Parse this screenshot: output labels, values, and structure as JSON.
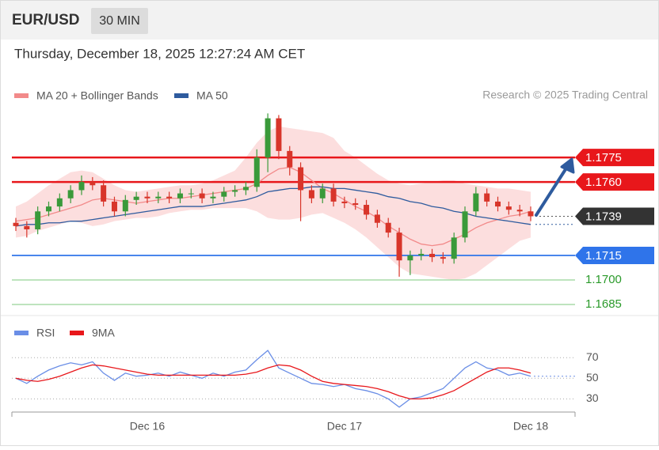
{
  "header": {
    "symbol": "EUR/USD",
    "interval": "30 MIN",
    "datetime": "Thursday, December 18, 2025 12:27:24 AM CET",
    "credit": "Research © 2025 Trading Central"
  },
  "chart_data": [
    {
      "type": "candlestick",
      "categories": [
        null,
        null,
        null,
        null,
        null,
        null,
        null,
        null,
        null,
        null,
        null,
        null,
        "Dec 16",
        null,
        null,
        null,
        null,
        null,
        null,
        null,
        null,
        null,
        null,
        null,
        null,
        null,
        null,
        null,
        null,
        null,
        "Dec 17",
        null,
        null,
        null,
        null,
        null,
        null,
        null,
        null,
        null,
        null,
        null,
        null,
        null,
        null,
        null,
        null,
        "Dec 18"
      ],
      "open": [
        1.1735,
        1.1733,
        1.1731,
        1.1742,
        1.1745,
        1.175,
        1.1755,
        1.176,
        1.1758,
        1.1748,
        1.1742,
        1.1749,
        1.1751,
        1.175,
        1.1751,
        1.175,
        1.1753,
        1.1753,
        1.175,
        1.1751,
        1.1754,
        1.1755,
        1.1757,
        1.1775,
        1.1799,
        1.1779,
        1.1769,
        1.1755,
        1.175,
        1.1756,
        1.1748,
        1.1747,
        1.1746,
        1.174,
        1.1735,
        1.1729,
        1.1712,
        1.1715,
        1.1716,
        1.1714,
        1.1713,
        1.1726,
        1.1742,
        1.1753,
        1.1748,
        1.1745,
        1.1743,
        1.1742
      ],
      "high": [
        1.1738,
        1.1736,
        1.1745,
        1.1748,
        1.1753,
        1.1758,
        1.1764,
        1.1763,
        1.1761,
        1.1751,
        1.1752,
        1.1754,
        1.1754,
        1.1754,
        1.1754,
        1.1756,
        1.1756,
        1.1756,
        1.1754,
        1.1757,
        1.1758,
        1.176,
        1.178,
        1.1802,
        1.1801,
        1.1782,
        1.1772,
        1.1758,
        1.1759,
        1.1759,
        1.1751,
        1.175,
        1.1749,
        1.1743,
        1.1738,
        1.1732,
        1.1718,
        1.1719,
        1.1719,
        1.1717,
        1.1729,
        1.1745,
        1.1757,
        1.1756,
        1.1751,
        1.1748,
        1.1746,
        1.1745
      ],
      "low": [
        1.173,
        1.1726,
        1.1728,
        1.1739,
        1.1742,
        1.1747,
        1.1752,
        1.1755,
        1.1745,
        1.1739,
        1.1739,
        1.1746,
        1.1747,
        1.1747,
        1.1747,
        1.1747,
        1.175,
        1.1747,
        1.1747,
        1.1748,
        1.1751,
        1.1752,
        1.1754,
        1.1766,
        1.1774,
        1.1764,
        1.1736,
        1.1747,
        1.1747,
        1.1745,
        1.1744,
        1.1743,
        1.1737,
        1.1732,
        1.1726,
        1.1702,
        1.1703,
        1.1712,
        1.1711,
        1.171,
        1.171,
        1.1723,
        1.1739,
        1.1745,
        1.1742,
        1.174,
        1.1739,
        1.1736
      ],
      "close": [
        1.1733,
        1.1731,
        1.1742,
        1.1745,
        1.175,
        1.1755,
        1.176,
        1.1758,
        1.1748,
        1.1742,
        1.1749,
        1.1751,
        1.175,
        1.1751,
        1.175,
        1.1753,
        1.1753,
        1.175,
        1.1751,
        1.1754,
        1.1755,
        1.1757,
        1.1775,
        1.1799,
        1.1779,
        1.1769,
        1.1755,
        1.175,
        1.1756,
        1.1748,
        1.1747,
        1.1746,
        1.174,
        1.1735,
        1.1729,
        1.1712,
        1.1715,
        1.1716,
        1.1714,
        1.1713,
        1.1726,
        1.1742,
        1.1753,
        1.1748,
        1.1745,
        1.1743,
        1.1742,
        1.1739
      ],
      "up_color": "#3a9a3a",
      "down_color": "#d8352a",
      "series": [
        {
          "name": "MA 20 + Bollinger Bands",
          "color": "#f28a8a",
          "band_color": "#fbd3d3",
          "values": [
            1.1736,
            1.1737,
            1.1738,
            1.174,
            1.1742,
            1.1744,
            1.1746,
            1.1749,
            1.175,
            1.1749,
            1.1748,
            1.1747,
            1.1748,
            1.1749,
            1.175,
            1.175,
            1.1751,
            1.1752,
            1.1753,
            1.1754,
            1.1755,
            1.1756,
            1.1759,
            1.1764,
            1.1768,
            1.1769,
            1.1766,
            1.1761,
            1.1756,
            1.1753,
            1.1749,
            1.1745,
            1.1742,
            1.1738,
            1.1733,
            1.1729,
            1.1725,
            1.1722,
            1.1721,
            1.1722,
            1.1725,
            1.1728,
            1.1732,
            1.1735,
            1.1737,
            1.1739,
            1.174,
            1.1742
          ],
          "upper": [
            1.1745,
            1.1748,
            1.1753,
            1.1758,
            1.1762,
            1.1766,
            1.1767,
            1.1766,
            1.1762,
            1.1758,
            1.1755,
            1.1754,
            1.1755,
            1.1756,
            1.1757,
            1.1758,
            1.1758,
            1.1759,
            1.1761,
            1.1764,
            1.1767,
            1.1775,
            1.1784,
            1.1791,
            1.1794,
            1.1793,
            1.1792,
            1.1791,
            1.179,
            1.1787,
            1.1779,
            1.1775,
            1.177,
            1.1765,
            1.1761,
            1.1759,
            1.1758,
            1.1759,
            1.176,
            1.1761,
            1.1761,
            1.1759,
            1.1758,
            1.1757,
            1.1756,
            1.1756,
            1.1755,
            1.1754
          ],
          "lower": [
            1.1726,
            1.1727,
            1.173,
            1.1732,
            1.1734,
            1.1736,
            1.1735,
            1.1733,
            1.1734,
            1.1736,
            1.1737,
            1.1738,
            1.1738,
            1.1739,
            1.1741,
            1.1742,
            1.1743,
            1.1743,
            1.1744,
            1.1744,
            1.1744,
            1.1744,
            1.1742,
            1.1738,
            1.1737,
            1.1737,
            1.1738,
            1.174,
            1.1741,
            1.1738,
            1.1735,
            1.1731,
            1.1726,
            1.172,
            1.1714,
            1.1708,
            1.1704,
            1.1703,
            1.1702,
            1.1701,
            1.17,
            1.1701,
            1.1704,
            1.1709,
            1.1714,
            1.1719,
            1.1724,
            1.1726
          ]
        },
        {
          "name": "MA 50",
          "color": "#2e5b9e",
          "values": [
            1.1733,
            1.1734,
            1.1734,
            1.1735,
            1.1735,
            1.1736,
            1.1736,
            1.1737,
            1.1738,
            1.1739,
            1.174,
            1.1741,
            1.1742,
            1.1743,
            1.1744,
            1.1745,
            1.1745,
            1.1745,
            1.1746,
            1.1747,
            1.1748,
            1.1749,
            1.1751,
            1.1754,
            1.1755,
            1.1756,
            1.1756,
            1.1757,
            1.1757,
            1.1756,
            1.1756,
            1.1755,
            1.1754,
            1.1753,
            1.1751,
            1.175,
            1.1748,
            1.1747,
            1.1745,
            1.1744,
            1.1742,
            1.1741,
            1.1739,
            1.1738,
            1.1737,
            1.1736,
            1.1735,
            1.1734
          ]
        }
      ],
      "levels": [
        {
          "value": 1.1775,
          "color": "#e8171b",
          "style": "box"
        },
        {
          "value": 1.176,
          "label": "1.1760",
          "color": "#e8171b",
          "style": "box"
        },
        {
          "value": 1.1739,
          "color": "#333333",
          "style": "current"
        },
        {
          "value": 1.1715,
          "color": "#2f74ea",
          "style": "box"
        },
        {
          "value": 1.17,
          "label": "1.1700",
          "color": "#2a9a2a",
          "style": "text"
        },
        {
          "value": 1.1685,
          "color": "#2a9a2a",
          "style": "text"
        }
      ],
      "ylim": [
        1.168,
        1.1808
      ]
    },
    {
      "type": "line",
      "series": [
        {
          "name": "RSI",
          "color": "#6a8ee6",
          "values": [
            50,
            45,
            52,
            58,
            62,
            65,
            63,
            66,
            55,
            48,
            55,
            52,
            53,
            55,
            52,
            56,
            53,
            50,
            55,
            52,
            56,
            58,
            68,
            77,
            60,
            55,
            50,
            45,
            44,
            42,
            44,
            40,
            38,
            35,
            30,
            22,
            30,
            32,
            36,
            40,
            50,
            60,
            66,
            60,
            58,
            53,
            55,
            52
          ]
        },
        {
          "name": "9MA",
          "color": "#e8171b",
          "values": [
            50,
            48,
            47,
            49,
            52,
            56,
            60,
            63,
            62,
            60,
            58,
            56,
            54,
            53,
            53,
            53,
            53,
            53,
            53,
            53,
            53,
            54,
            56,
            60,
            63,
            62,
            58,
            52,
            47,
            45,
            44,
            43,
            42,
            40,
            37,
            33,
            30,
            30,
            31,
            34,
            38,
            44,
            50,
            56,
            60,
            60,
            58,
            55
          ]
        }
      ],
      "ylim": [
        18,
        84
      ],
      "yticks": [
        70,
        50,
        30
      ],
      "grid": true
    }
  ]
}
